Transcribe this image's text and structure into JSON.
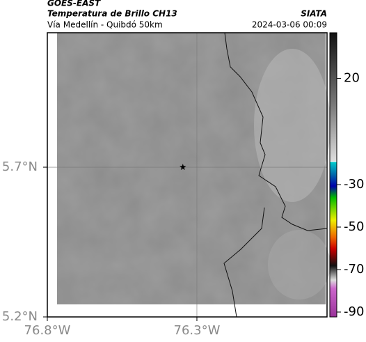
{
  "header": {
    "source": "GOES-EAST",
    "product": "Temperatura de Brillo CH13",
    "region": "Vía Medellín - Quibdó 50km",
    "agency": "SIATA",
    "timestamp": "2024-03-06 00:09"
  },
  "map": {
    "xlim": [
      -76.8,
      -75.865
    ],
    "ylim": [
      5.2,
      6.149
    ],
    "xticks": [
      {
        "value": -76.8,
        "label": "76.8°W"
      },
      {
        "value": -76.3,
        "label": "76.3°W"
      }
    ],
    "yticks": [
      {
        "value": 5.2,
        "label": "5.2°N"
      },
      {
        "value": 5.7,
        "label": "5.7°N"
      }
    ],
    "marker": {
      "lon": -76.347,
      "lat": 5.7
    }
  },
  "colorbar": {
    "lim": [
      41.5,
      -92.3
    ],
    "ticks": [
      20,
      -30,
      -50,
      -70,
      -90
    ]
  }
}
